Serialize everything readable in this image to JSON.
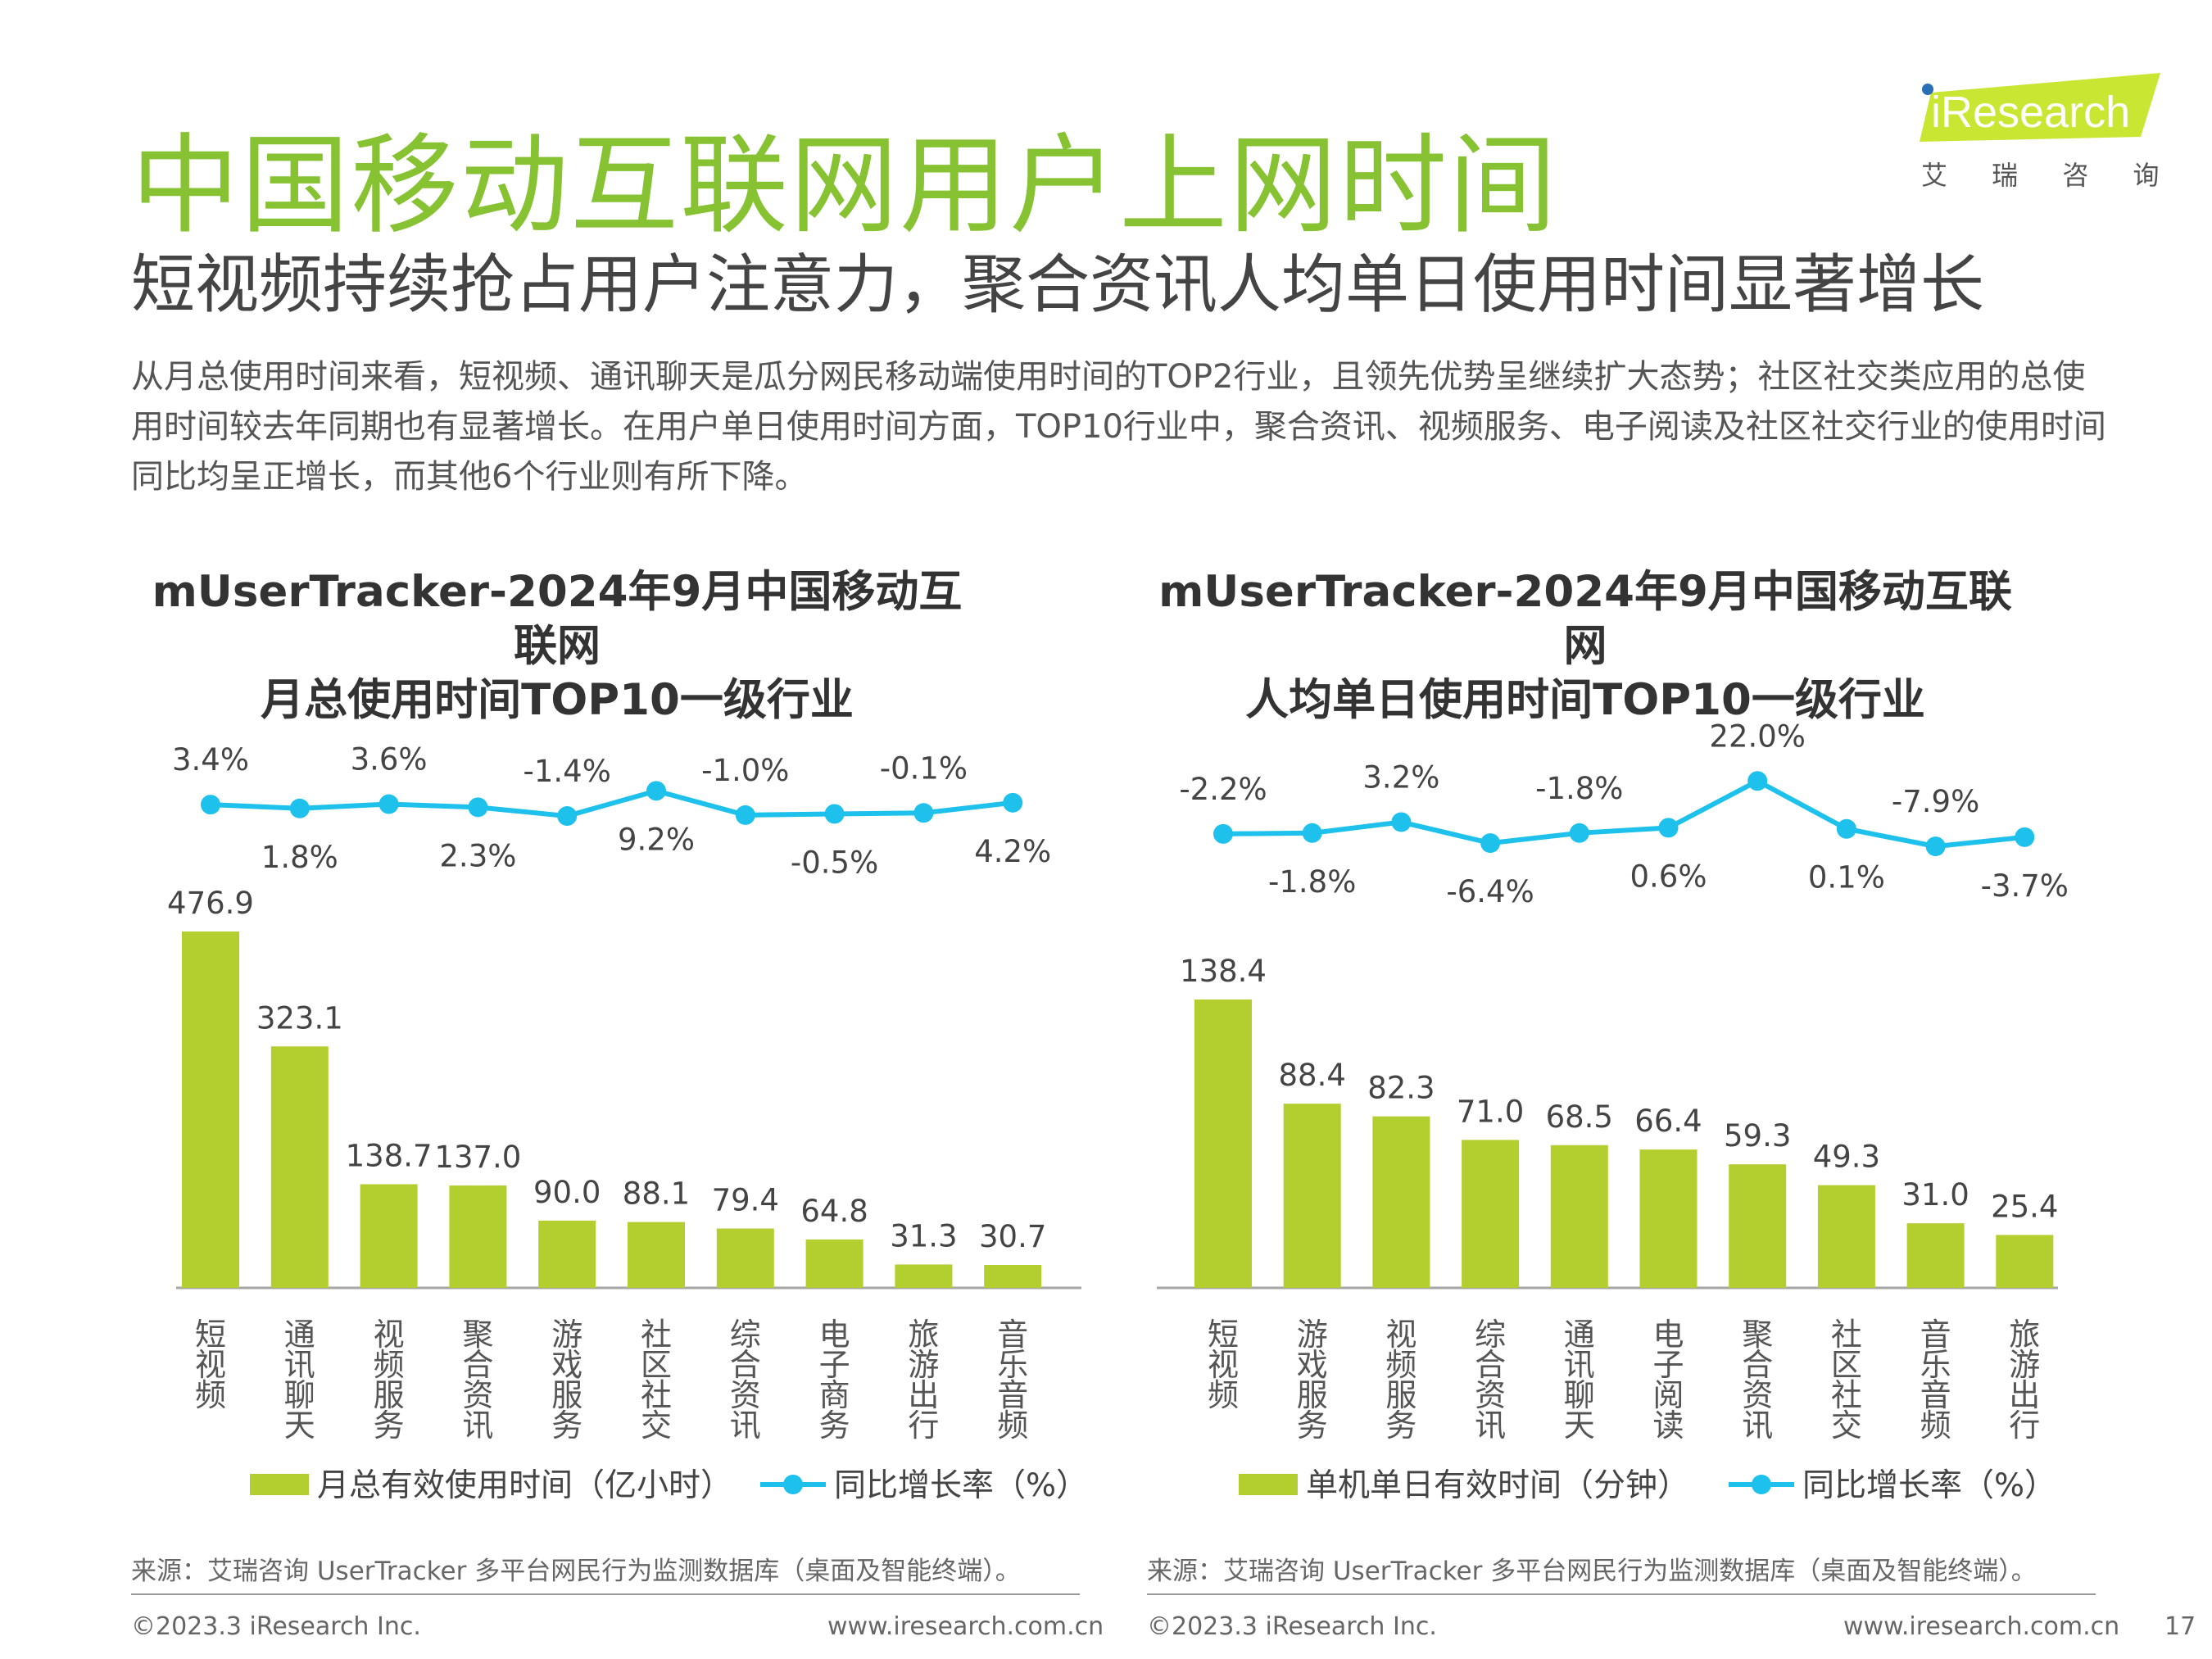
{
  "header": {
    "title": "中国移动互联网用户上网时间",
    "subtitle": "短视频持续抢占用户注意力，聚合资讯人均单日使用时间显著增长",
    "description": "从月总使用时间来看，短视频、通讯聊天是瓜分网民移动端使用时间的TOP2行业，且领先优势呈继续扩大态势；社区社交类应用的总使用时间较去年同期也有显著增长。在用户单日使用时间方面，TOP10行业中，聚合资讯、视频服务、电子阅读及社区社交行业的使用时间同比均呈正增长，而其他6个行业则有所下降。"
  },
  "logo": {
    "brand": "iResearch",
    "cn": "艾 瑞 咨 询",
    "color": "#c8e632"
  },
  "colors": {
    "bar": "#b2cf2f",
    "line": "#1ec1ec",
    "title": "#86c232"
  },
  "chart_data": [
    {
      "type": "bar",
      "title_lines": [
        "mUserTracker-2024年9月中国移动互联网",
        "月总使用时间TOP10一级行业"
      ],
      "categories": [
        "短视频",
        "通讯聊天",
        "视频服务",
        "聚合资讯",
        "游戏服务",
        "社区社交",
        "综合资讯",
        "电子商务",
        "旅游出行",
        "音乐音频"
      ],
      "series": [
        {
          "name": "月总有效使用时间（亿小时）",
          "type": "bar",
          "values": [
            476.9,
            323.1,
            138.7,
            137.0,
            90.0,
            88.1,
            79.4,
            64.8,
            31.3,
            30.7
          ],
          "labels": [
            "476.9",
            "323.1",
            "138.7",
            "137.0",
            "90.0",
            "88.1",
            "79.4",
            "64.8",
            "31.3",
            "30.7"
          ]
        },
        {
          "name": "同比增长率（%）",
          "type": "line",
          "values": [
            3.4,
            1.8,
            3.6,
            2.3,
            -1.4,
            9.2,
            -1.0,
            -0.5,
            -0.1,
            4.2
          ],
          "labels": [
            "3.4%",
            "1.8%",
            "3.6%",
            "2.3%",
            "-1.4%",
            "9.2%",
            "-1.0%",
            "-0.5%",
            "-0.1%",
            "4.2%"
          ]
        }
      ]
    },
    {
      "type": "bar",
      "title_lines": [
        "mUserTracker-2024年9月中国移动互联网",
        "人均单日使用时间TOP10一级行业"
      ],
      "categories": [
        "短视频",
        "游戏服务",
        "视频服务",
        "综合资讯",
        "通讯聊天",
        "电子阅读",
        "聚合资讯",
        "社区社交",
        "音乐音频",
        "旅游出行"
      ],
      "series": [
        {
          "name": "单机单日有效时间（分钟）",
          "type": "bar",
          "values": [
            138.4,
            88.4,
            82.3,
            71.0,
            68.5,
            66.4,
            59.3,
            49.3,
            31.0,
            25.4
          ],
          "labels": [
            "138.4",
            "88.4",
            "82.3",
            "71.0",
            "68.5",
            "66.4",
            "59.3",
            "49.3",
            "31.0",
            "25.4"
          ]
        },
        {
          "name": "同比增长率（%）",
          "type": "line",
          "values": [
            -2.2,
            -1.8,
            3.2,
            -6.4,
            -1.8,
            0.6,
            22.0,
            0.1,
            -7.9,
            -3.7
          ],
          "labels": [
            "-2.2%",
            "-1.8%",
            "3.2%",
            "-6.4%",
            "-1.8%",
            "0.6%",
            "22.0%",
            "0.1%",
            "-7.9%",
            "-3.7%"
          ]
        }
      ]
    }
  ],
  "source_text": "来源：艾瑞咨询 UserTracker 多平台网民行为监测数据库（桌面及智能终端）。",
  "footer": {
    "copyright": "©2023.3 iResearch Inc.",
    "url": "www.iresearch.com.cn",
    "page": "17"
  }
}
